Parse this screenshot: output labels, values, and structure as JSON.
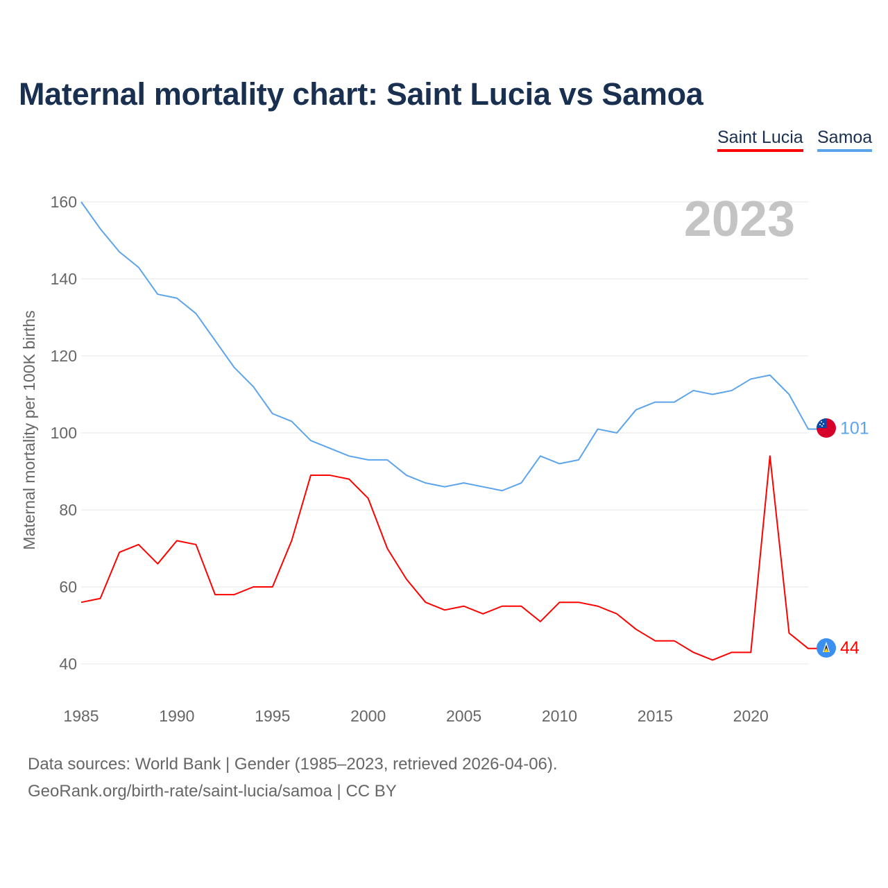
{
  "title": "Maternal mortality chart: Saint Lucia vs Samoa",
  "footer": {
    "line1": "Data sources: World Bank | Gender (1985–2023, retrieved 2026-04-06).",
    "line2": "GeoRank.org/birth-rate/saint-lucia/samoa | CC BY"
  },
  "chart_data": {
    "type": "line",
    "title": "Maternal mortality chart: Saint Lucia vs Samoa",
    "xlabel": "",
    "ylabel": "Maternal mortality per 100K births",
    "year_watermark": "2023",
    "xlim": [
      1985,
      2023
    ],
    "ylim": [
      40,
      160
    ],
    "xticks": [
      "1985",
      "1990",
      "1995",
      "2000",
      "2005",
      "2010",
      "2015",
      "2020"
    ],
    "yticks": [
      "40",
      "60",
      "80",
      "100",
      "120",
      "140",
      "160"
    ],
    "legend_position": "top-right",
    "grid": true,
    "x": [
      1985,
      1986,
      1987,
      1988,
      1989,
      1990,
      1991,
      1992,
      1993,
      1994,
      1995,
      1996,
      1997,
      1998,
      1999,
      2000,
      2001,
      2002,
      2003,
      2004,
      2005,
      2006,
      2007,
      2008,
      2009,
      2010,
      2011,
      2012,
      2013,
      2014,
      2015,
      2016,
      2017,
      2018,
      2019,
      2020,
      2021,
      2022,
      2023
    ],
    "series": [
      {
        "name": "Saint Lucia",
        "color": "#ff0000",
        "end_label": "44",
        "values": [
          56,
          57,
          69,
          71,
          66,
          72,
          71,
          58,
          58,
          60,
          60,
          72,
          89,
          89,
          88,
          83,
          70,
          62,
          56,
          54,
          55,
          53,
          55,
          55,
          51,
          56,
          56,
          55,
          53,
          49,
          46,
          46,
          43,
          41,
          43,
          43,
          94,
          48,
          44
        ]
      },
      {
        "name": "Samoa",
        "color": "#5ba4ec",
        "end_label": "101",
        "values": [
          160,
          153,
          147,
          143,
          136,
          135,
          131,
          124,
          117,
          112,
          105,
          103,
          98,
          96,
          94,
          93,
          93,
          89,
          87,
          86,
          87,
          86,
          85,
          87,
          94,
          92,
          93,
          101,
          100,
          106,
          108,
          108,
          111,
          110,
          111,
          114,
          115,
          110,
          101
        ]
      }
    ]
  }
}
